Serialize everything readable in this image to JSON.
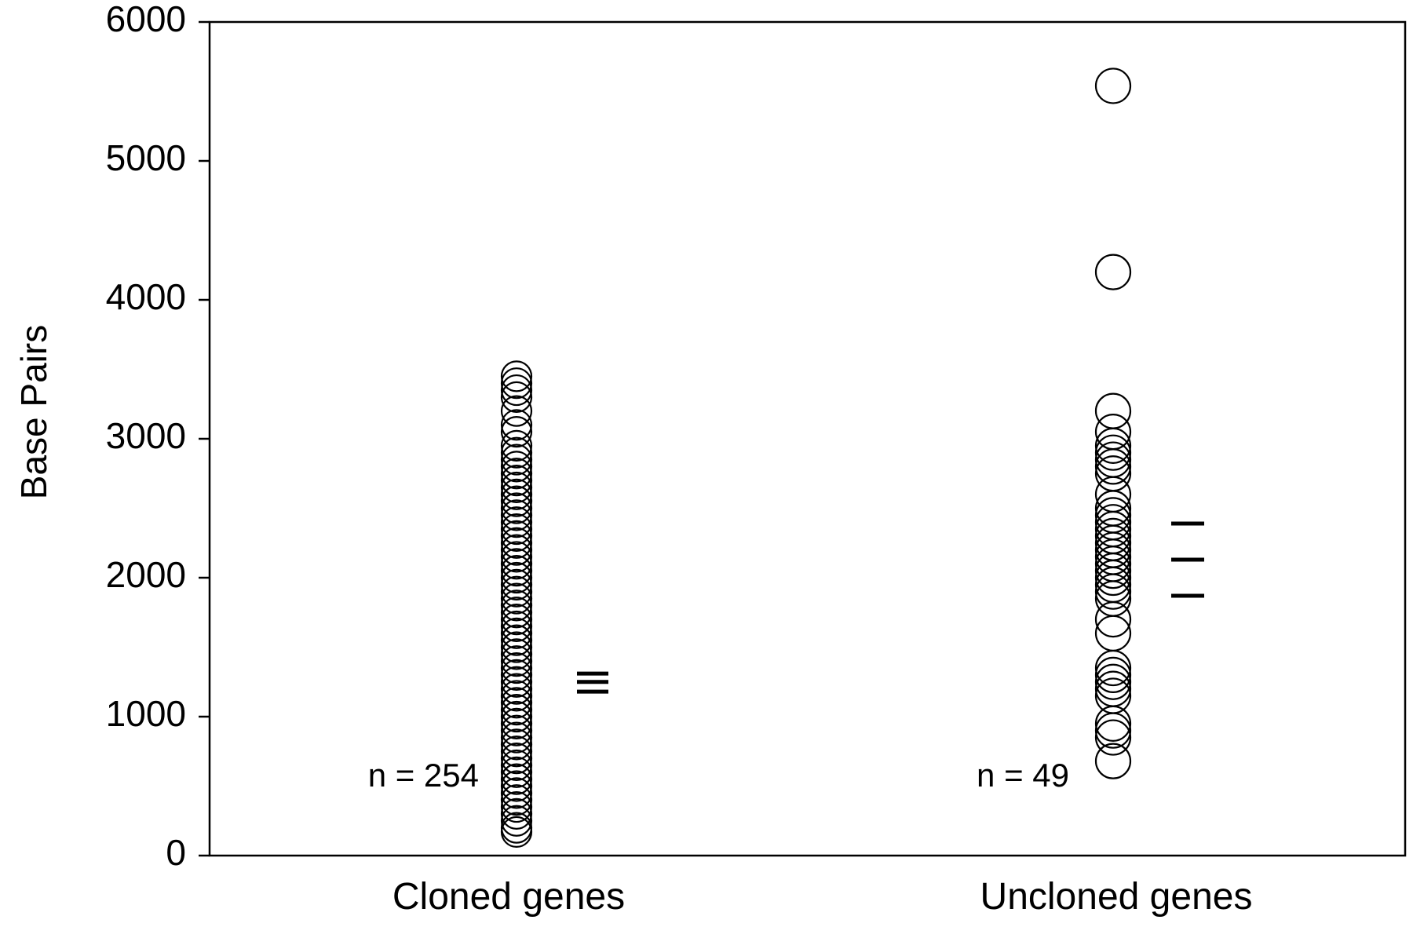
{
  "chart_data": {
    "type": "scatter",
    "ylabel": "Base Pairs",
    "xlabel": "",
    "ylim": [
      0,
      6000
    ],
    "yticks": [
      0,
      1000,
      2000,
      3000,
      4000,
      5000,
      6000
    ],
    "categories": [
      "Cloned genes",
      "Uncloned genes"
    ],
    "grid": false,
    "series": [
      {
        "category": "Cloned genes",
        "n_label": "n = 254",
        "values": [
          3450,
          3400,
          3350,
          3300,
          3200,
          3100,
          3050,
          2950,
          2900,
          2850,
          2800,
          2750,
          2700,
          2650,
          2600,
          2550,
          2500,
          2450,
          2400,
          2350,
          2300,
          2250,
          2200,
          2150,
          2100,
          2050,
          2000,
          1950,
          1900,
          1850,
          1800,
          1750,
          1700,
          1650,
          1600,
          1550,
          1500,
          1450,
          1400,
          1350,
          1300,
          1250,
          1200,
          1150,
          1100,
          1050,
          1000,
          950,
          900,
          850,
          800,
          750,
          700,
          650,
          600,
          550,
          500,
          450,
          400,
          350,
          300,
          250,
          200,
          170
        ],
        "summary_lines": [
          1310,
          1250,
          1180
        ]
      },
      {
        "category": "Uncloned genes",
        "n_label": "n = 49",
        "values": [
          5540,
          4200,
          3200,
          3050,
          2950,
          2900,
          2850,
          2800,
          2750,
          2600,
          2500,
          2450,
          2400,
          2350,
          2300,
          2250,
          2200,
          2150,
          2100,
          2050,
          2000,
          1950,
          1900,
          1850,
          1700,
          1600,
          1350,
          1300,
          1250,
          1200,
          1150,
          950,
          900,
          850,
          680
        ],
        "summary_lines": [
          2390,
          2130,
          1870
        ]
      }
    ]
  }
}
